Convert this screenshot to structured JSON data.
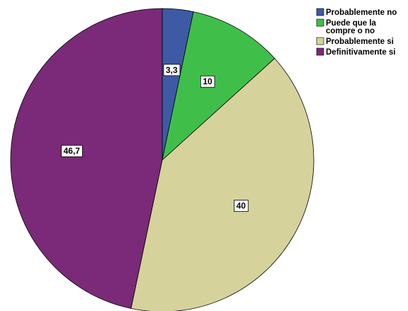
{
  "chart_data": {
    "type": "pie",
    "start_angle_deg": 0,
    "direction": "clockwise",
    "slices": [
      {
        "label": "Probablemente no",
        "value": 3.3,
        "display": "3,3",
        "color": "#3e5aa5"
      },
      {
        "label": "Puede que la compre o no",
        "value": 10,
        "display": "10",
        "color": "#3fbf4a"
      },
      {
        "label": "Probablemente si",
        "value": 40,
        "display": "40",
        "color": "#d6d29b"
      },
      {
        "label": "Definitivamente si",
        "value": 46.7,
        "display": "46,7",
        "color": "#7a2a78"
      }
    ],
    "legend": {
      "placement": "top-right",
      "entries": [
        {
          "lines": [
            "Probablemente no"
          ],
          "color": "#3e5aa5"
        },
        {
          "lines": [
            "Puede que la",
            "compre o no"
          ],
          "color": "#3fbf4a"
        },
        {
          "lines": [
            "Probablemente si"
          ],
          "color": "#d6d29b"
        },
        {
          "lines": [
            "Definitivamente si"
          ],
          "color": "#7a2a78"
        }
      ]
    }
  }
}
